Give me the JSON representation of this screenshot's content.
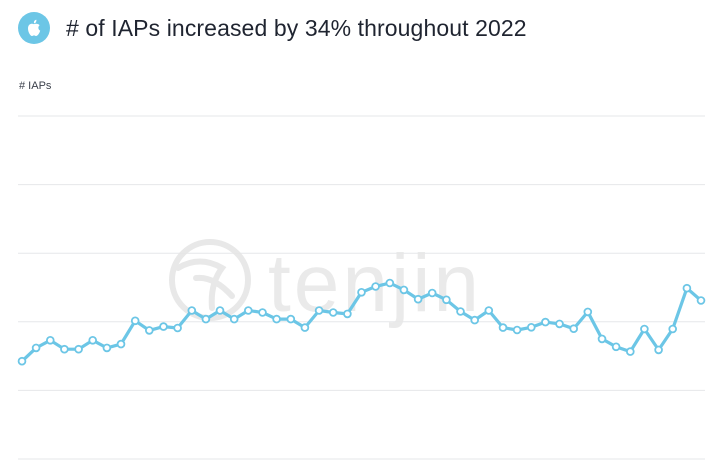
{
  "header": {
    "title": "# of IAPs increased by 34% throughout 2022",
    "icon": "apple-icon",
    "badge_color": "#6cc6e6"
  },
  "watermark": {
    "text": "tenjin",
    "icon": "tenjin-logo-icon"
  },
  "chart_data": {
    "type": "line",
    "title": "# of IAPs increased by 34% throughout 2022",
    "ylabel": "# IAPs",
    "xlabel": "",
    "grid": true,
    "legend": "none",
    "line_color": "#6cc6e6",
    "ylim": [
      0,
      100
    ],
    "series": [
      {
        "values": [
          28.5,
          32.4,
          34.6,
          32,
          32,
          34.6,
          32.4,
          33.5,
          40.3,
          37.5,
          38.6,
          38.2,
          43.3,
          40.8,
          43.3,
          40.8,
          43.3,
          42.7,
          40.8,
          40.8,
          38.3,
          43.3,
          42.7,
          42.3,
          48.6,
          50.3,
          51.3,
          49.3,
          46.6,
          48.4,
          46.4,
          43,
          40.5,
          43.3,
          38.3,
          37.6,
          38.4,
          39.9,
          39.4,
          38,
          42.9,
          35,
          32.7,
          31.3,
          37.9,
          31.8,
          37.9,
          49.8,
          46.2
        ]
      }
    ]
  }
}
